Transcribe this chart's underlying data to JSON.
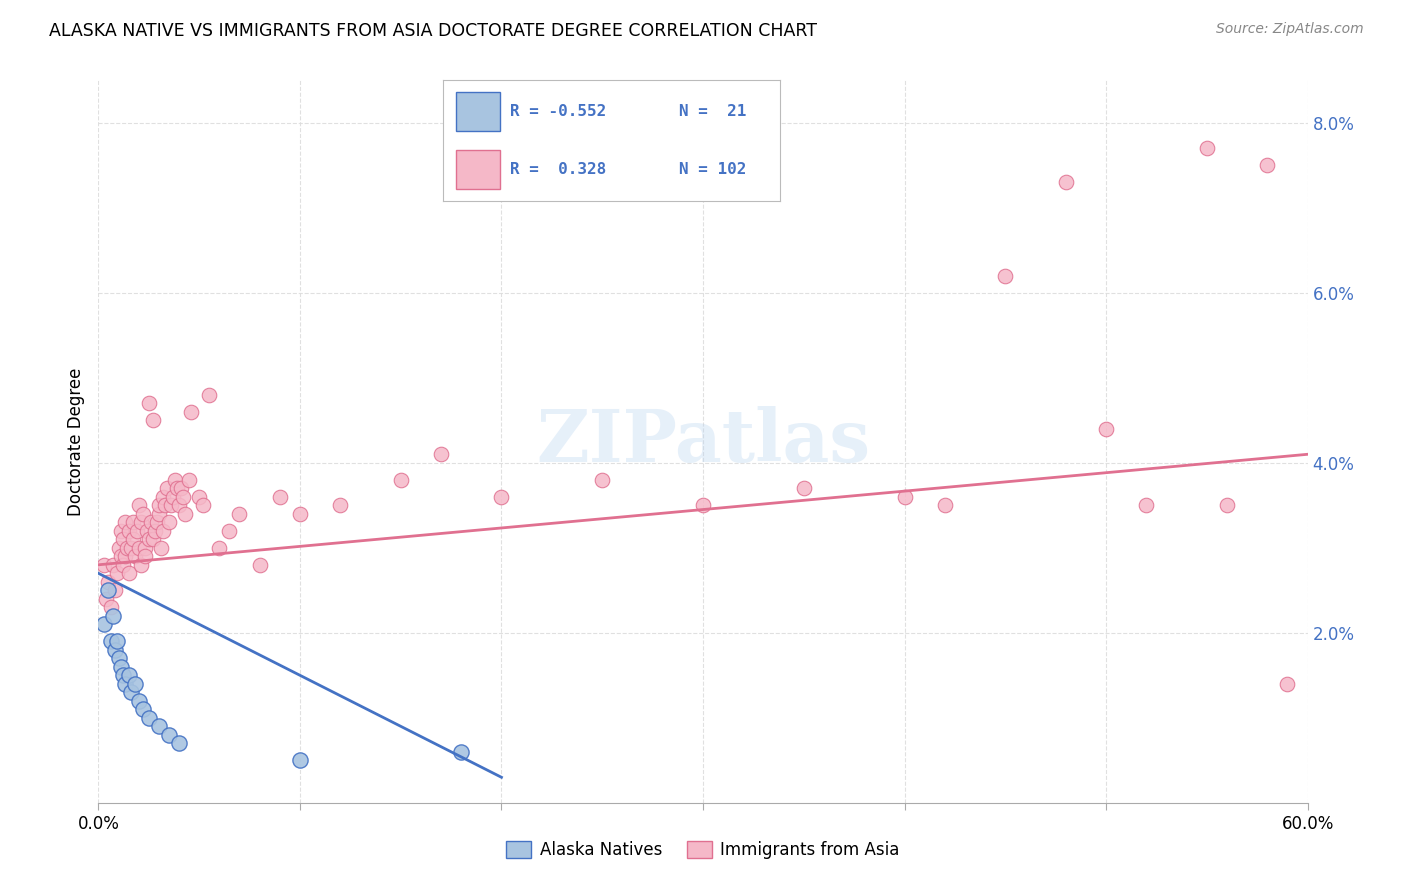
{
  "title": "ALASKA NATIVE VS IMMIGRANTS FROM ASIA DOCTORATE DEGREE CORRELATION CHART",
  "source": "Source: ZipAtlas.com",
  "ylabel": "Doctorate Degree",
  "xlim": [
    0.0,
    60.0
  ],
  "ylim": [
    0.0,
    8.5
  ],
  "yticks": [
    2.0,
    4.0,
    6.0,
    8.0
  ],
  "ytick_labels": [
    "2.0%",
    "4.0%",
    "6.0%",
    "8.0%"
  ],
  "color_alaska": "#a8c4e0",
  "color_asia": "#f5b8c8",
  "color_alaska_line": "#4472c4",
  "color_asia_line": "#e07090",
  "legend_label1": "Alaska Natives",
  "legend_label2": "Immigrants from Asia",
  "watermark": "ZIPatlas",
  "alaska_x": [
    0.3,
    0.5,
    0.6,
    0.7,
    0.8,
    0.9,
    1.0,
    1.1,
    1.2,
    1.3,
    1.5,
    1.6,
    1.8,
    2.0,
    2.2,
    2.5,
    3.0,
    3.5,
    4.0,
    10.0,
    18.0
  ],
  "alaska_y": [
    2.1,
    2.5,
    1.9,
    2.2,
    1.8,
    1.9,
    1.7,
    1.6,
    1.5,
    1.4,
    1.5,
    1.3,
    1.4,
    1.2,
    1.1,
    1.0,
    0.9,
    0.8,
    0.7,
    0.5,
    0.6
  ],
  "asia_x": [
    0.3,
    0.4,
    0.5,
    0.6,
    0.7,
    0.8,
    0.9,
    1.0,
    1.1,
    1.1,
    1.2,
    1.2,
    1.3,
    1.3,
    1.4,
    1.5,
    1.5,
    1.6,
    1.7,
    1.7,
    1.8,
    1.9,
    2.0,
    2.0,
    2.1,
    2.1,
    2.2,
    2.3,
    2.3,
    2.4,
    2.5,
    2.5,
    2.6,
    2.7,
    2.7,
    2.8,
    2.9,
    3.0,
    3.0,
    3.1,
    3.2,
    3.2,
    3.3,
    3.4,
    3.5,
    3.6,
    3.7,
    3.8,
    3.9,
    4.0,
    4.1,
    4.2,
    4.3,
    4.5,
    4.6,
    5.0,
    5.2,
    5.5,
    6.0,
    6.5,
    7.0,
    8.0,
    9.0,
    10.0,
    12.0,
    15.0,
    17.0,
    20.0,
    25.0,
    30.0,
    35.0,
    40.0,
    42.0,
    45.0,
    48.0,
    50.0,
    52.0,
    55.0,
    56.0,
    58.0,
    59.0
  ],
  "asia_y": [
    2.8,
    2.4,
    2.6,
    2.3,
    2.8,
    2.5,
    2.7,
    3.0,
    3.2,
    2.9,
    2.8,
    3.1,
    2.9,
    3.3,
    3.0,
    3.2,
    2.7,
    3.0,
    3.1,
    3.3,
    2.9,
    3.2,
    3.5,
    3.0,
    3.3,
    2.8,
    3.4,
    3.0,
    2.9,
    3.2,
    3.1,
    4.7,
    3.3,
    4.5,
    3.1,
    3.2,
    3.3,
    3.4,
    3.5,
    3.0,
    3.2,
    3.6,
    3.5,
    3.7,
    3.3,
    3.5,
    3.6,
    3.8,
    3.7,
    3.5,
    3.7,
    3.6,
    3.4,
    3.8,
    4.6,
    3.6,
    3.5,
    4.8,
    3.0,
    3.2,
    3.4,
    2.8,
    3.6,
    3.4,
    3.5,
    3.8,
    4.1,
    3.6,
    3.8,
    3.5,
    3.7,
    3.6,
    3.5,
    6.2,
    7.3,
    4.4,
    3.5,
    7.7,
    3.5,
    7.5,
    1.4
  ]
}
